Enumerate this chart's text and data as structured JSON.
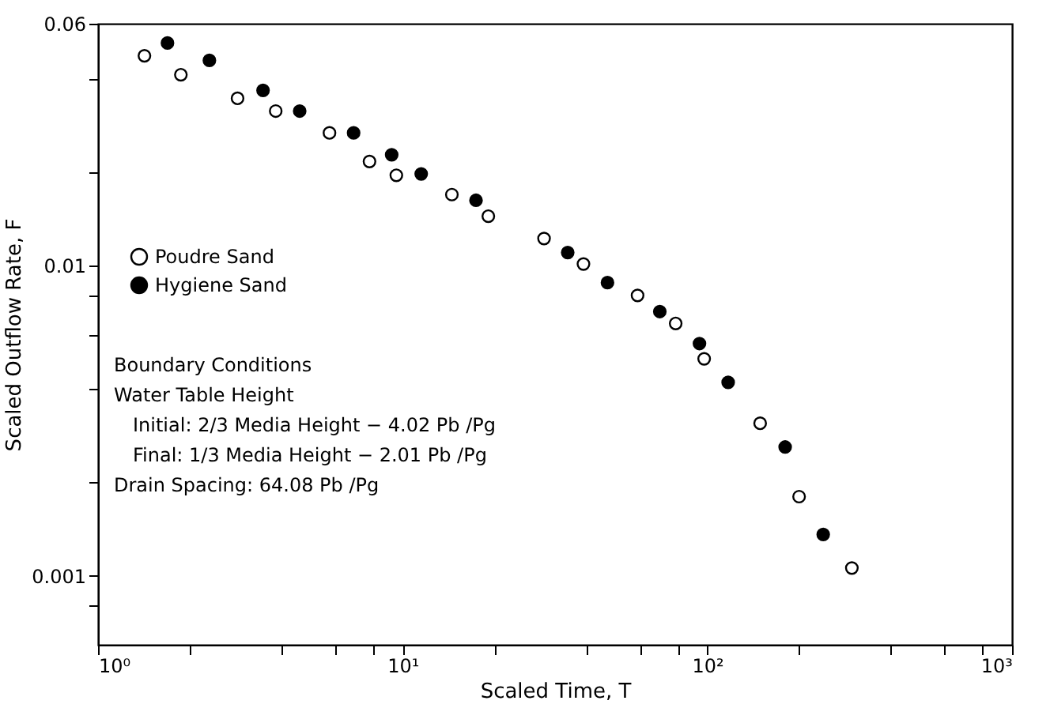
{
  "chart_data": {
    "type": "scatter",
    "xlabel": "Scaled Time, T",
    "ylabel": "Scaled Outflow Rate, F",
    "log": "xy",
    "grid": false,
    "legend": "left",
    "marker": "circle",
    "xlim": [
      1,
      1000
    ],
    "ylim": [
      0.0006,
      0.06
    ],
    "xticks": [
      {
        "value": 1,
        "label": "10⁰"
      },
      {
        "value": 2,
        "label": null
      },
      {
        "value": 4,
        "label": null
      },
      {
        "value": 6,
        "label": null
      },
      {
        "value": 8,
        "label": null
      },
      {
        "value": 10,
        "label": "10¹"
      },
      {
        "value": 20,
        "label": null
      },
      {
        "value": 40,
        "label": null
      },
      {
        "value": 60,
        "label": null
      },
      {
        "value": 80,
        "label": null
      },
      {
        "value": 100,
        "label": "10²"
      },
      {
        "value": 200,
        "label": null
      },
      {
        "value": 400,
        "label": null
      },
      {
        "value": 600,
        "label": null
      },
      {
        "value": 800,
        "label": null
      },
      {
        "value": 1000,
        "label": "10³"
      }
    ],
    "yticks": [
      {
        "value": 0.0008,
        "label": null
      },
      0.001,
      {
        "value": 0.002,
        "label": null
      },
      {
        "value": 0.004,
        "label": null
      },
      {
        "value": 0.006,
        "label": null
      },
      {
        "value": 0.008,
        "label": null
      },
      0.01,
      {
        "value": 0.02,
        "label": null
      },
      {
        "value": 0.04,
        "label": null
      },
      0.06
    ],
    "series": [
      {
        "name": "Poudre Sand",
        "color": "#ffffff",
        "x": [
          1.42,
          1.87,
          2.87,
          3.83,
          5.75,
          7.78,
          9.53,
          14.5,
          19.1,
          29.1,
          39.2,
          59.0,
          78.7,
          97.6,
          149,
          200,
          298
        ],
        "values": [
          0.0473,
          0.0411,
          0.0345,
          0.0314,
          0.0267,
          0.0216,
          0.0195,
          0.0169,
          0.0144,
          0.0122,
          0.0101,
          0.008,
          0.0065,
          0.005,
          0.0031,
          0.0018,
          0.00106
        ]
      },
      {
        "name": "Hygiene Sand",
        "color": "#000000",
        "x": [
          1.69,
          2.32,
          3.48,
          4.59,
          6.9,
          9.2,
          11.5,
          17.4,
          34.8,
          47.0,
          69.8,
          94.2,
          117,
          180,
          240
        ],
        "values": [
          0.052,
          0.0457,
          0.0366,
          0.0314,
          0.0267,
          0.0227,
          0.0197,
          0.0162,
          0.011,
          0.0088,
          0.0071,
          0.0056,
          0.0042,
          0.0026,
          0.00136
        ]
      }
    ],
    "annotations": [
      "Boundary Conditions",
      "Water Table Height",
      "Initial: 2/3 Media Height − 4.02 Pb /Pg",
      "Final: 1/3 Media Height − 2.01 Pb /Pg",
      "Drain Spacing: 64.08 Pb /Pg"
    ]
  }
}
